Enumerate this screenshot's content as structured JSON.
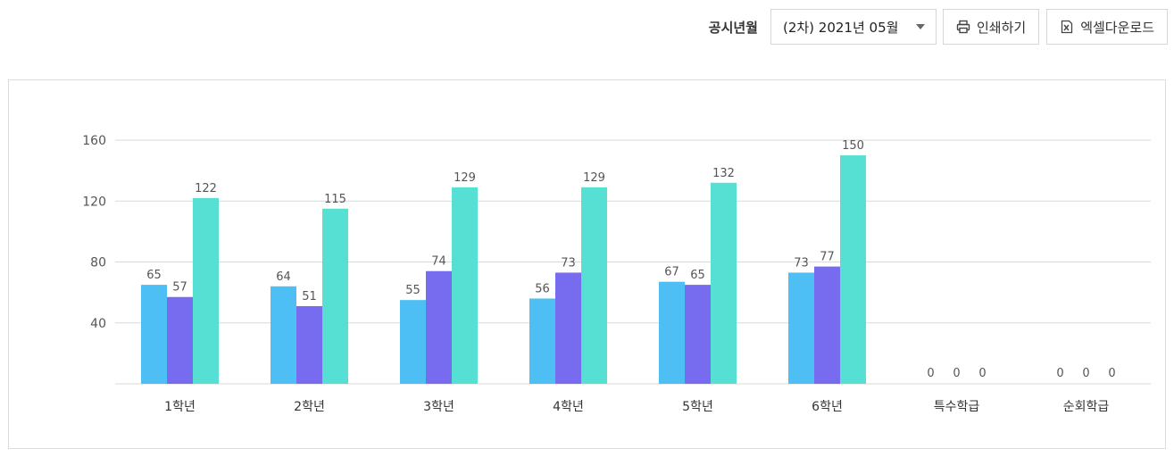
{
  "toolbar": {
    "period_label": "공시년월",
    "period_value": "(2차) 2021년 05월",
    "print_label": "인쇄하기",
    "excel_label": "엑셀다운로드"
  },
  "colors": {
    "series": [
      "#4dbff5",
      "#776cf0",
      "#55e0d3"
    ],
    "grid": "#d9d9d9",
    "text": "#555555"
  },
  "icons": {
    "print": "printer-icon",
    "excel": "excel-file-icon",
    "dropdown": "chevron-down-icon"
  },
  "chart_data": {
    "type": "bar",
    "categories": [
      "1학년",
      "2학년",
      "3학년",
      "4학년",
      "5학년",
      "6학년",
      "특수학급",
      "순회학급"
    ],
    "series": [
      {
        "values": [
          65,
          64,
          55,
          56,
          67,
          73,
          0,
          0
        ]
      },
      {
        "values": [
          57,
          51,
          74,
          73,
          65,
          77,
          0,
          0
        ]
      },
      {
        "values": [
          122,
          115,
          129,
          129,
          132,
          150,
          0,
          0
        ]
      }
    ],
    "yticks": [
      40,
      80,
      120,
      160
    ],
    "ylim": [
      0,
      160
    ],
    "grid": true,
    "legend": "none"
  }
}
